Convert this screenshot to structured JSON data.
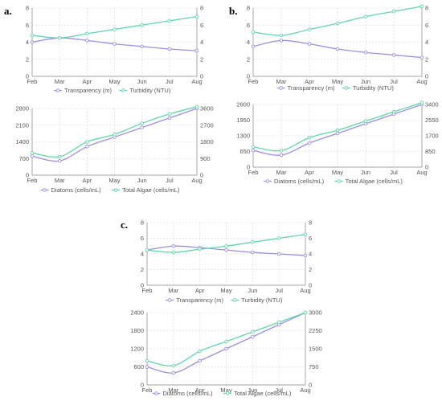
{
  "colors": {
    "purple": "#9b8fe0",
    "green": "#62d6a8",
    "axis": "#888888",
    "text": "#555555"
  },
  "chart_data": [
    {
      "panel": "a.",
      "type": "line",
      "categories": [
        "Feb",
        "Mar",
        "Apr",
        "May",
        "Jun",
        "Jul",
        "Aug"
      ],
      "ylim": [
        0,
        8
      ],
      "y_ticks": [
        0,
        2,
        4,
        6,
        8
      ],
      "y2lim": [
        0,
        8
      ],
      "y2_ticks": [
        0,
        2,
        4,
        6,
        8
      ],
      "series": [
        {
          "name": "Transparency (m)",
          "axis": "left",
          "color": "purple",
          "values": [
            4.0,
            4.5,
            4.2,
            3.8,
            3.5,
            3.2,
            3.0
          ]
        },
        {
          "name": "Turbidity (NTU)",
          "axis": "right",
          "color": "green",
          "values": [
            4.8,
            4.5,
            5.0,
            5.5,
            6.0,
            6.5,
            7.0
          ]
        }
      ],
      "legend": "bottom"
    },
    {
      "panel": "",
      "type": "line",
      "categories": [
        "Feb",
        "Mar",
        "Apr",
        "May",
        "Jun",
        "Jul",
        "Aug"
      ],
      "ylim": [
        0,
        2800
      ],
      "y_ticks": [
        0,
        700,
        1400,
        2100,
        2800
      ],
      "y2lim": [
        0,
        3600
      ],
      "y2_ticks": [
        0,
        900,
        1800,
        2700,
        3600
      ],
      "series": [
        {
          "name": "Diatoms (cells/mL)",
          "axis": "left",
          "color": "purple",
          "values": [
            800,
            600,
            1200,
            1600,
            2000,
            2400,
            2800
          ]
        },
        {
          "name": "Total Algae (cells/mL)",
          "axis": "right",
          "color": "green",
          "values": [
            1200,
            1000,
            1800,
            2200,
            2800,
            3300,
            3700
          ]
        }
      ],
      "legend": "bottom"
    },
    {
      "panel": "b.",
      "type": "line",
      "categories": [
        "Feb",
        "Mar",
        "Apr",
        "May",
        "Jun",
        "Jul",
        "Aug"
      ],
      "ylim": [
        0,
        8
      ],
      "y_ticks": [
        0,
        2,
        4,
        6,
        8
      ],
      "y2lim": [
        0,
        8
      ],
      "y2_ticks": [
        0,
        2,
        4,
        6,
        8
      ],
      "series": [
        {
          "name": "Transparency (m)",
          "axis": "left",
          "color": "purple",
          "values": [
            3.5,
            4.2,
            3.8,
            3.2,
            2.8,
            2.5,
            2.2
          ]
        },
        {
          "name": "Turbidity (NTU)",
          "axis": "right",
          "color": "green",
          "values": [
            5.2,
            4.8,
            5.5,
            6.2,
            7.0,
            7.6,
            8.2
          ]
        }
      ],
      "legend": "bottom"
    },
    {
      "panel": "",
      "type": "line",
      "categories": [
        "Feb",
        "Mar",
        "Apr",
        "May",
        "Jun",
        "Jul",
        "Aug"
      ],
      "ylim": [
        0,
        2600
      ],
      "y_ticks": [
        0,
        650,
        1300,
        1950,
        2600
      ],
      "y2lim": [
        0,
        3400
      ],
      "y2_ticks": [
        0,
        850,
        1700,
        2550,
        3400
      ],
      "series": [
        {
          "name": "Diatoms (cells/mL)",
          "axis": "left",
          "color": "purple",
          "values": [
            700,
            500,
            1000,
            1400,
            1800,
            2200,
            2600
          ]
        },
        {
          "name": "Total Algae (cells/mL)",
          "axis": "right",
          "color": "green",
          "values": [
            1100,
            900,
            1600,
            2000,
            2500,
            3000,
            3500
          ]
        }
      ],
      "legend": "bottom"
    },
    {
      "panel": "c.",
      "type": "line",
      "categories": [
        "Feb",
        "Mar",
        "Apr",
        "May",
        "Jun",
        "Jul",
        "Aug"
      ],
      "ylim": [
        0,
        8
      ],
      "y_ticks": [
        0,
        2,
        4,
        6,
        8
      ],
      "y2lim": [
        0,
        8
      ],
      "y2_ticks": [
        0,
        2,
        4,
        6,
        8
      ],
      "series": [
        {
          "name": "Transparency (m)",
          "axis": "left",
          "color": "purple",
          "values": [
            4.5,
            5.0,
            4.8,
            4.5,
            4.2,
            4.0,
            3.8
          ]
        },
        {
          "name": "Turbidity (NTU)",
          "axis": "right",
          "color": "green",
          "values": [
            4.5,
            4.2,
            4.6,
            5.0,
            5.5,
            6.0,
            6.5
          ]
        }
      ],
      "legend": "bottom"
    },
    {
      "panel": "",
      "type": "line",
      "categories": [
        "Feb",
        "Mar",
        "Apr",
        "May",
        "Jun",
        "Jul",
        "Aug"
      ],
      "ylim": [
        0,
        2400
      ],
      "y_ticks": [
        0,
        600,
        1200,
        1800,
        2400
      ],
      "y2lim": [
        0,
        3000
      ],
      "y2_ticks": [
        0,
        750,
        1500,
        2250,
        3000
      ],
      "series": [
        {
          "name": "Diatoms (cells/mL)",
          "axis": "left",
          "color": "purple",
          "values": [
            600,
            400,
            800,
            1200,
            1600,
            2000,
            2400
          ]
        },
        {
          "name": "Total Algae (cells/mL)",
          "axis": "right",
          "color": "green",
          "values": [
            1000,
            800,
            1400,
            1800,
            2200,
            2600,
            3000
          ]
        }
      ],
      "legend": "bottom"
    }
  ]
}
